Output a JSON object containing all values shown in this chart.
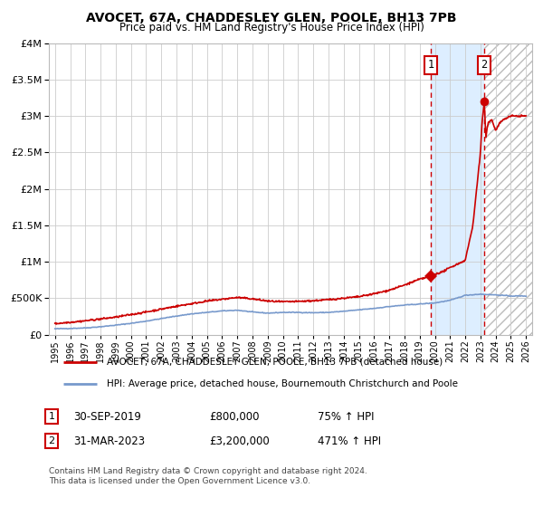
{
  "title": "AVOCET, 67A, CHADDESLEY GLEN, POOLE, BH13 7PB",
  "subtitle": "Price paid vs. HM Land Registry's House Price Index (HPI)",
  "legend_line1": "AVOCET, 67A, CHADDESLEY GLEN, POOLE, BH13 7PB (detached house)",
  "legend_line2": "HPI: Average price, detached house, Bournemouth Christchurch and Poole",
  "footnote1": "Contains HM Land Registry data © Crown copyright and database right 2024.",
  "footnote2": "This data is licensed under the Open Government Licence v3.0.",
  "annotation1_label": "1",
  "annotation1_date": "30-SEP-2019",
  "annotation1_price": "£800,000",
  "annotation1_hpi": "75% ↑ HPI",
  "annotation2_label": "2",
  "annotation2_date": "31-MAR-2023",
  "annotation2_price": "£3,200,000",
  "annotation2_hpi": "471% ↑ HPI",
  "red_color": "#cc0000",
  "blue_color": "#7799cc",
  "bg_shaded_color": "#ddeeff",
  "grid_color": "#cccccc",
  "ylim": [
    0,
    4000000
  ],
  "yticks": [
    0,
    500000,
    1000000,
    1500000,
    2000000,
    2500000,
    3000000,
    3500000,
    4000000
  ],
  "xlim_start": 1994.6,
  "xlim_end": 2026.4,
  "sale1_x": 2019.75,
  "sale1_y": 800000,
  "sale2_x": 2023.25,
  "sale2_y": 3200000,
  "vline1_x": 2019.75,
  "vline2_x": 2023.25,
  "shade_x_start": 2019.75,
  "shade_x_end": 2023.25,
  "hatch_x_start": 2023.25,
  "hatch_x_end": 2026.4
}
